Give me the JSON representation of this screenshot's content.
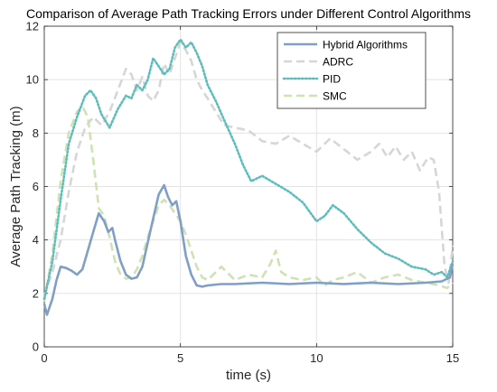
{
  "chart_data": {
    "type": "line",
    "title": "Comparison of Average Path Tracking Errors under Different Control Algorithms",
    "xlabel": "time (s)",
    "ylabel": "Average Path Tracking  (m)",
    "xlim": [
      0,
      15
    ],
    "ylim": [
      0,
      12
    ],
    "xticks": [
      0,
      5,
      10,
      15
    ],
    "yticks": [
      0,
      2,
      4,
      6,
      8,
      10,
      12
    ],
    "xtick_labels": [
      "0",
      "5",
      "10",
      "15"
    ],
    "ytick_labels": [
      "0",
      "2",
      "4",
      "6",
      "8",
      "10",
      "12"
    ],
    "grid": true,
    "legend_position": "top-right",
    "series": [
      {
        "name": "Hybrid Algorithms",
        "color": "#7f9fc6",
        "style": "solid",
        "x": [
          0,
          0.1,
          0.2,
          0.3,
          0.45,
          0.6,
          0.8,
          1.0,
          1.2,
          1.4,
          1.6,
          1.8,
          2.0,
          2.2,
          2.35,
          2.5,
          2.6,
          2.8,
          3.0,
          3.2,
          3.4,
          3.6,
          3.8,
          4.0,
          4.2,
          4.4,
          4.55,
          4.7,
          4.85,
          5.0,
          5.2,
          5.4,
          5.6,
          5.8,
          6.0,
          6.5,
          7.0,
          8.0,
          9.0,
          10.0,
          11.0,
          12.0,
          13.0,
          14.0,
          14.6,
          14.9,
          15.0
        ],
        "y": [
          1.6,
          1.2,
          1.5,
          1.8,
          2.5,
          3.0,
          2.95,
          2.85,
          2.7,
          2.9,
          3.6,
          4.3,
          5.0,
          4.7,
          4.3,
          4.45,
          4.0,
          3.2,
          2.7,
          2.55,
          2.6,
          3.0,
          3.9,
          4.8,
          5.7,
          6.05,
          5.6,
          5.3,
          5.45,
          4.7,
          3.4,
          2.7,
          2.3,
          2.25,
          2.3,
          2.35,
          2.35,
          2.4,
          2.35,
          2.4,
          2.35,
          2.4,
          2.35,
          2.4,
          2.45,
          2.6,
          3.1
        ]
      },
      {
        "name": "ADRC",
        "color": "#d6d6d6",
        "style": "dashed",
        "x": [
          0,
          0.3,
          0.6,
          0.9,
          1.2,
          1.5,
          1.8,
          2.1,
          2.4,
          2.7,
          3.0,
          3.2,
          3.4,
          3.6,
          3.8,
          4.0,
          4.2,
          4.4,
          4.6,
          4.8,
          5.0,
          5.2,
          5.4,
          5.6,
          5.8,
          6.0,
          6.3,
          6.6,
          7.0,
          7.5,
          8.0,
          8.5,
          9.0,
          9.5,
          10.0,
          10.5,
          11.0,
          11.5,
          12.0,
          12.3,
          12.6,
          12.9,
          13.2,
          13.5,
          13.8,
          14.1,
          14.3,
          14.5,
          14.7,
          14.85,
          15.0
        ],
        "y": [
          1.9,
          2.8,
          4.0,
          5.8,
          7.3,
          8.2,
          8.6,
          8.3,
          8.8,
          9.6,
          10.4,
          10.2,
          9.6,
          10.1,
          9.4,
          9.2,
          9.6,
          10.6,
          10.2,
          10.8,
          11.4,
          11.1,
          10.7,
          10.0,
          9.6,
          9.3,
          8.8,
          8.3,
          8.2,
          8.1,
          7.7,
          7.6,
          7.9,
          7.6,
          7.3,
          7.8,
          7.4,
          7.0,
          7.3,
          7.6,
          7.1,
          7.5,
          7.0,
          7.3,
          6.6,
          7.1,
          7.0,
          5.8,
          3.0,
          2.4,
          3.8
        ]
      },
      {
        "name": "PID",
        "color": "#5fbcbc",
        "style": "dotted",
        "x": [
          0,
          0.3,
          0.6,
          0.9,
          1.2,
          1.5,
          1.7,
          1.9,
          2.1,
          2.4,
          2.7,
          3.0,
          3.2,
          3.4,
          3.6,
          3.8,
          4.0,
          4.2,
          4.4,
          4.6,
          4.8,
          5.0,
          5.2,
          5.4,
          5.6,
          5.8,
          6.0,
          6.3,
          6.6,
          7.0,
          7.3,
          7.6,
          8.0,
          8.5,
          9.0,
          9.5,
          10.0,
          10.3,
          10.6,
          11.0,
          11.5,
          12.0,
          12.5,
          13.0,
          13.5,
          14.0,
          14.3,
          14.6,
          14.8,
          15.0
        ],
        "y": [
          1.8,
          3.2,
          5.5,
          7.6,
          8.6,
          9.4,
          9.6,
          9.3,
          8.7,
          8.2,
          8.9,
          9.4,
          9.3,
          9.8,
          9.6,
          10.0,
          10.8,
          10.5,
          10.2,
          10.4,
          11.2,
          11.5,
          11.2,
          11.4,
          11.0,
          10.5,
          9.8,
          9.2,
          8.5,
          7.6,
          6.8,
          6.2,
          6.4,
          6.1,
          5.8,
          5.4,
          4.7,
          4.9,
          5.3,
          5.0,
          4.4,
          3.9,
          3.5,
          3.3,
          3.0,
          2.9,
          2.7,
          2.8,
          2.6,
          3.2
        ]
      },
      {
        "name": "SMC",
        "color": "#cfe2b4",
        "style": "dashed",
        "x": [
          0,
          0.3,
          0.6,
          0.9,
          1.2,
          1.4,
          1.6,
          1.8,
          2.0,
          2.2,
          2.4,
          2.6,
          2.8,
          3.0,
          3.2,
          3.4,
          3.6,
          3.8,
          4.0,
          4.2,
          4.4,
          4.6,
          4.8,
          5.0,
          5.2,
          5.4,
          5.6,
          5.8,
          6.0,
          6.5,
          7.0,
          7.5,
          8.0,
          8.3,
          8.5,
          8.7,
          9.0,
          9.5,
          10.0,
          10.3,
          10.6,
          11.0,
          11.5,
          12.0,
          12.5,
          13.0,
          13.5,
          14.0,
          14.5,
          14.8,
          15.0
        ],
        "y": [
          1.7,
          3.5,
          6.2,
          8.0,
          8.8,
          9.0,
          8.6,
          7.0,
          5.2,
          4.9,
          4.1,
          3.2,
          2.7,
          2.55,
          2.6,
          2.9,
          3.4,
          4.1,
          4.7,
          5.3,
          5.5,
          5.3,
          5.0,
          4.7,
          4.2,
          3.6,
          3.0,
          2.6,
          2.5,
          3.0,
          2.5,
          2.7,
          2.6,
          3.1,
          3.6,
          2.8,
          2.6,
          2.5,
          2.6,
          2.3,
          2.5,
          2.6,
          2.8,
          2.4,
          2.6,
          2.7,
          2.5,
          2.4,
          2.3,
          2.2,
          2.4
        ]
      }
    ]
  }
}
